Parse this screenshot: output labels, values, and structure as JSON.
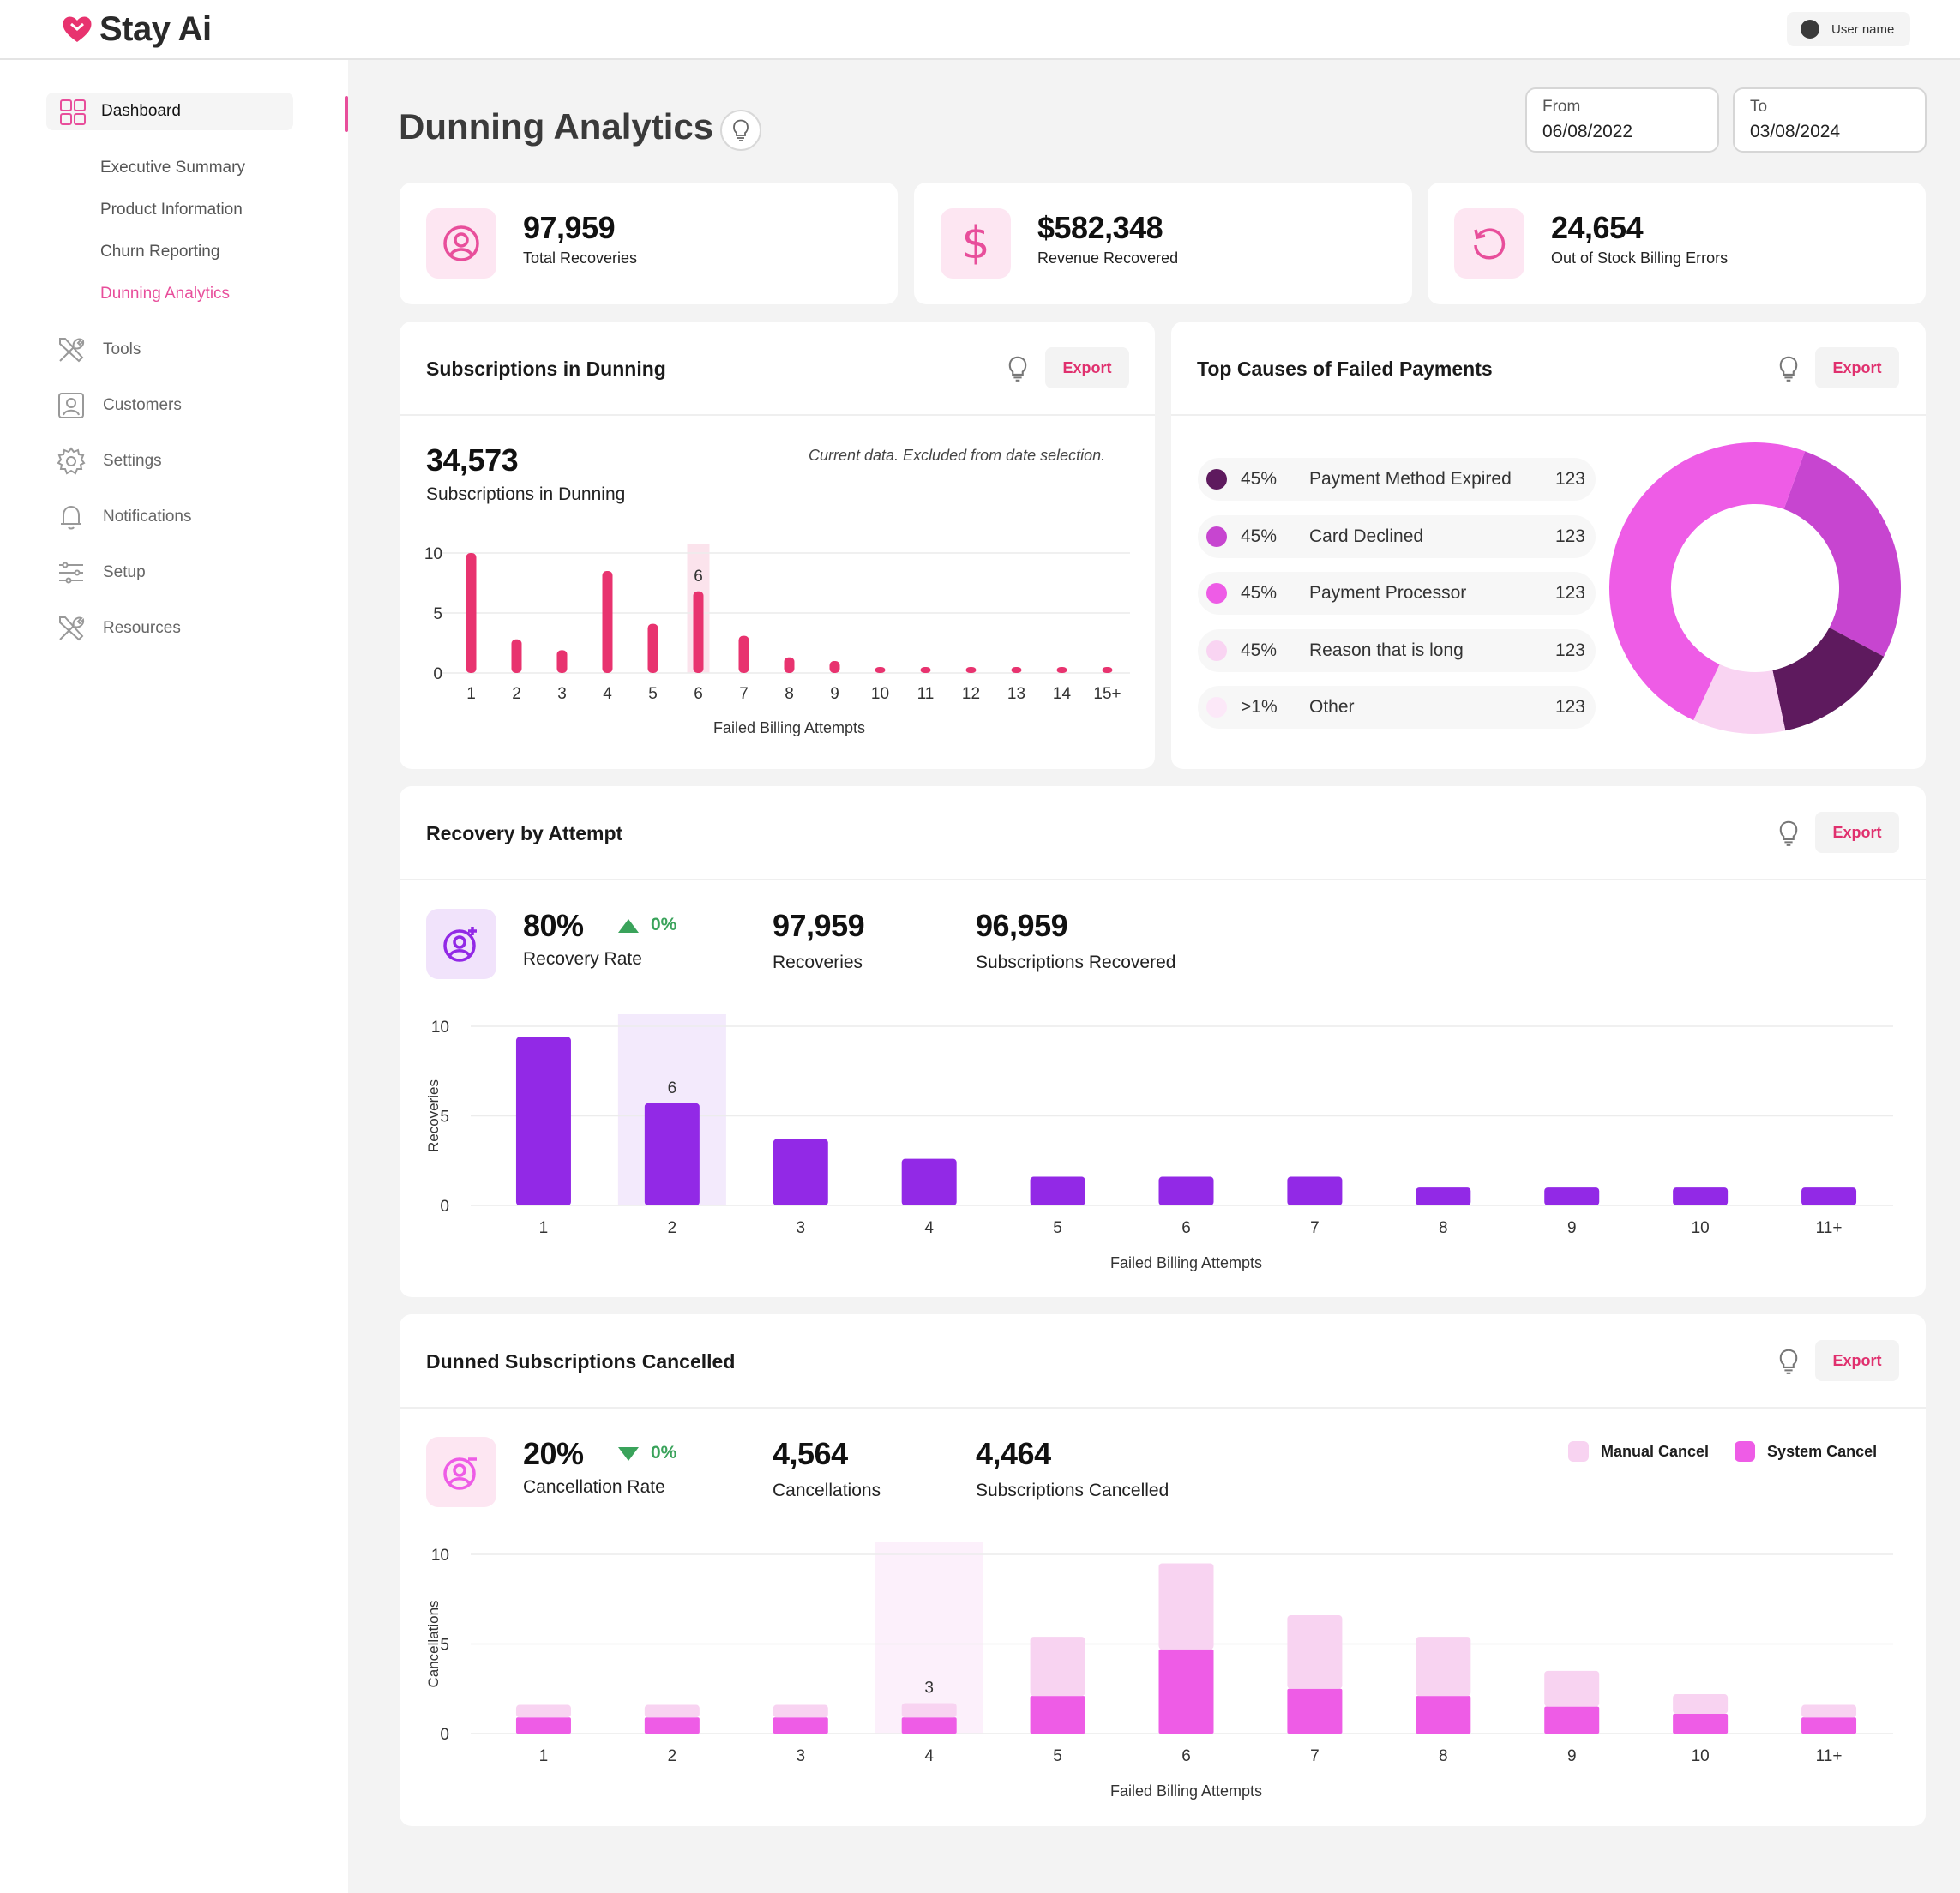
{
  "app": {
    "name": "Stay Ai",
    "user": "User name"
  },
  "sidebar": {
    "dashboard": "Dashboard",
    "subitems": [
      "Executive Summary",
      "Product  Information",
      "Churn Reporting",
      "Dunning Analytics"
    ],
    "items": [
      "Tools",
      "Customers",
      "Settings",
      "Notifications",
      "Setup",
      "Resources"
    ]
  },
  "page": {
    "title": "Dunning Analytics"
  },
  "dates": {
    "from_label": "From",
    "from_value": "06/08/2022",
    "to_label": "To",
    "to_value": "03/08/2024"
  },
  "kpis": [
    {
      "value": "97,959",
      "label": "Total Recoveries",
      "icon": "user-circle-icon"
    },
    {
      "value": "$582,348",
      "label": "Revenue Recovered",
      "icon": "dollar-icon"
    },
    {
      "value": "24,654",
      "label": "Out of Stock Billing Errors",
      "icon": "refresh-icon"
    }
  ],
  "export_label": "Export",
  "subscriptions_in_dunning": {
    "title": "Subscriptions in Dunning",
    "value": "34,573",
    "label": "Subscriptions in Dunning",
    "note": "Current data. Excluded from date selection."
  },
  "top_causes": {
    "title": "Top Causes of Failed Payments",
    "rows": [
      {
        "pct": "45%",
        "label": "Payment Method Expired",
        "count": "123",
        "color": "#5e1a5e"
      },
      {
        "pct": "45%",
        "label": "Card Declined",
        "count": "123",
        "color": "#c745d0"
      },
      {
        "pct": "45%",
        "label": "Payment Processor",
        "count": "123",
        "color": "#ee5ce6"
      },
      {
        "pct": "45%",
        "label": "Reason that is long",
        "count": "123",
        "color": "#f9d4f2"
      },
      {
        "pct": ">1%",
        "label": "Other",
        "count": "123",
        "color": "#fce8f8"
      }
    ]
  },
  "recovery": {
    "title": "Recovery by Attempt",
    "rate": "80%",
    "trend": "0%",
    "rate_label": "Recovery Rate",
    "recoveries": "97,959",
    "recoveries_label": "Recoveries",
    "subs": "96,959",
    "subs_label": "Subscriptions Recovered"
  },
  "cancelled": {
    "title": "Dunned Subscriptions Cancelled",
    "rate": "20%",
    "trend": "0%",
    "rate_label": "Cancellation Rate",
    "cancellations": "4,564",
    "cancellations_label": "Cancellations",
    "subs": "4,464",
    "subs_label": "Subscriptions Cancelled",
    "legend_manual": "Manual Cancel",
    "legend_system": "System Cancel"
  },
  "chart_data": [
    {
      "type": "bar",
      "xlabel": "Failed Billing Attempts",
      "ylim": [
        0,
        10
      ],
      "yticks": [
        0,
        5,
        10
      ],
      "categories": [
        "1",
        "2",
        "3",
        "4",
        "5",
        "6",
        "7",
        "8",
        "9",
        "10",
        "11",
        "12",
        "13",
        "14",
        "15+"
      ],
      "values": [
        10,
        2.8,
        1.9,
        8.5,
        4.1,
        6.8,
        3.1,
        1.3,
        1.0,
        0.5,
        0.5,
        0.5,
        0.5,
        0.5,
        0.5
      ],
      "highlight_index": 5,
      "highlight_label": "6",
      "color": "#e8336f"
    },
    {
      "type": "bar",
      "xlabel": "Failed Billing Attempts",
      "ylabel": "Recoveries",
      "ylim": [
        0,
        10
      ],
      "yticks": [
        0,
        5,
        10
      ],
      "categories": [
        "1",
        "2",
        "3",
        "4",
        "5",
        "6",
        "7",
        "8",
        "9",
        "10",
        "11+"
      ],
      "values": [
        9.4,
        5.7,
        3.7,
        2.6,
        1.6,
        1.6,
        1.6,
        1.0,
        1.0,
        1.0,
        1.0
      ],
      "highlight_index": 1,
      "highlight_label": "6",
      "color": "#9229e6"
    },
    {
      "type": "bar",
      "stacked": true,
      "xlabel": "Failed Billing Attempts",
      "ylabel": "Cancellations",
      "ylim": [
        0,
        10
      ],
      "yticks": [
        0,
        5,
        10
      ],
      "categories": [
        "1",
        "2",
        "3",
        "4",
        "5",
        "6",
        "7",
        "8",
        "9",
        "10",
        "11+"
      ],
      "series": [
        {
          "name": "System Cancel",
          "color": "#ee5ce6",
          "values": [
            0.9,
            0.9,
            0.9,
            0.9,
            2.1,
            4.7,
            2.5,
            2.1,
            1.5,
            1.1,
            0.9
          ]
        },
        {
          "name": "Manual Cancel",
          "color": "#f8d3f1",
          "values": [
            0.7,
            0.7,
            0.7,
            0.8,
            3.3,
            4.8,
            4.1,
            3.3,
            2.0,
            1.1,
            0.7
          ]
        }
      ],
      "highlight_index": 3,
      "highlight_label": "3"
    }
  ]
}
